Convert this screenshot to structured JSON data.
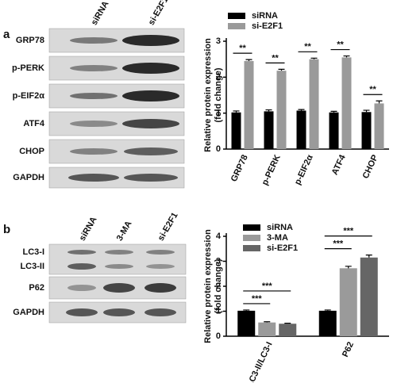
{
  "figure": {
    "panel_a": {
      "label": "a",
      "blot_lanes": [
        "siRNA",
        "si-E2F1"
      ],
      "blot_rows": [
        "GRP78",
        "p-PERK",
        "p-EIF2α",
        "ATF4",
        "CHOP",
        "GAPDH"
      ]
    },
    "panel_b": {
      "label": "b",
      "blot_lanes": [
        "siRNA",
        "3-MA",
        "si-E2F1"
      ],
      "blot_rows": [
        "LC3-I",
        "LC3-II",
        "P62",
        "GAPDH"
      ]
    }
  },
  "chart_data": [
    {
      "type": "bar",
      "y_label": [
        "Relative protein expression",
        "(fold change)"
      ],
      "categories": [
        "GRP78",
        "p-PERK",
        "p-EIF2α",
        "ATF4",
        "CHOP"
      ],
      "series": [
        {
          "name": "siRNA",
          "color": "#000000",
          "values": [
            1.02,
            1.05,
            1.07,
            1.02,
            1.03
          ],
          "errors": [
            0.04,
            0.04,
            0.03,
            0.03,
            0.05
          ]
        },
        {
          "name": "si-E2F1",
          "color": "#9a9a9a",
          "values": [
            2.45,
            2.18,
            2.5,
            2.55,
            1.27
          ],
          "errors": [
            0.04,
            0.04,
            0.03,
            0.04,
            0.07
          ]
        }
      ],
      "significance": [
        [
          "**"
        ],
        [
          "**"
        ],
        [
          "**"
        ],
        [
          "**"
        ],
        [
          "**"
        ]
      ],
      "ylim": [
        0,
        3
      ],
      "yticks": [
        0,
        1,
        2,
        3
      ]
    },
    {
      "type": "bar",
      "y_label": [
        "Relative protein expression",
        "(fold change)"
      ],
      "categories": [
        "LC3-II/LC3-I",
        "P62"
      ],
      "series": [
        {
          "name": "siRNA",
          "color": "#000000",
          "values": [
            1.02,
            1.02
          ],
          "errors": [
            0.03,
            0.03
          ]
        },
        {
          "name": "3-MA",
          "color": "#9a9a9a",
          "values": [
            0.55,
            2.72
          ],
          "errors": [
            0.03,
            0.08
          ]
        },
        {
          "name": "si-E2F1",
          "color": "#666666",
          "values": [
            0.5,
            3.15
          ],
          "errors": [
            0.02,
            0.1
          ]
        }
      ],
      "significance": [
        [
          "***",
          "***"
        ],
        [
          "***",
          "***"
        ]
      ],
      "ylim": [
        0,
        4
      ],
      "yticks": [
        0,
        1,
        2,
        3,
        4
      ]
    }
  ]
}
